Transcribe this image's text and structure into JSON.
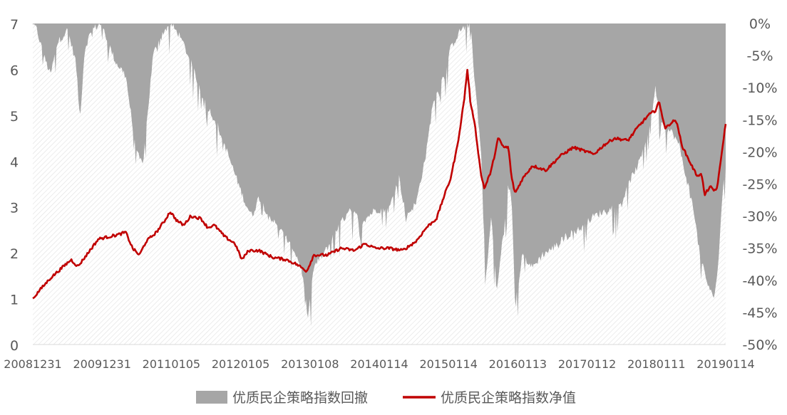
{
  "chart_data": {
    "type": "area+line",
    "title": "",
    "xlabel": "",
    "ylabel_left": "",
    "ylabel_right": "",
    "y_left_range": [
      0,
      7
    ],
    "y_right_range": [
      -0.5,
      0.0
    ],
    "grid": false,
    "legend_position": "bottom",
    "x_tick_labels": [
      "20081231",
      "20091231",
      "20110105",
      "20120105",
      "20130108",
      "20140114",
      "20150114",
      "20160113",
      "20170112",
      "20180111",
      "20190114"
    ],
    "y_left_ticks": [
      "0",
      "1",
      "2",
      "3",
      "4",
      "5",
      "6",
      "7"
    ],
    "y_right_ticks": [
      "0%",
      "-5%",
      "-10%",
      "-15%",
      "-20%",
      "-25%",
      "-30%",
      "-35%",
      "-40%",
      "-45%",
      "-50%"
    ],
    "series": [
      {
        "name": "优质民企策略指数回撤",
        "type": "area",
        "axis": "right",
        "color": "#a6a6a6",
        "keypoints": [
          [
            2008.99,
            0
          ],
          [
            2009.05,
            -0.01
          ],
          [
            2009.15,
            -0.05
          ],
          [
            2009.25,
            -0.08
          ],
          [
            2009.35,
            -0.03
          ],
          [
            2009.5,
            -0.01
          ],
          [
            2009.62,
            -0.06
          ],
          [
            2009.68,
            -0.15
          ],
          [
            2009.75,
            -0.04
          ],
          [
            2009.85,
            -0.01
          ],
          [
            2009.99,
            0
          ],
          [
            2010.2,
            -0.06
          ],
          [
            2010.35,
            -0.08
          ],
          [
            2010.5,
            -0.2
          ],
          [
            2010.6,
            -0.22
          ],
          [
            2010.75,
            -0.05
          ],
          [
            2010.85,
            -0.02
          ],
          [
            2011.0,
            0
          ],
          [
            2011.15,
            -0.02
          ],
          [
            2011.3,
            -0.06
          ],
          [
            2011.5,
            -0.12
          ],
          [
            2011.7,
            -0.16
          ],
          [
            2011.9,
            -0.22
          ],
          [
            2012.0,
            -0.25
          ],
          [
            2012.1,
            -0.28
          ],
          [
            2012.2,
            -0.3
          ],
          [
            2012.3,
            -0.27
          ],
          [
            2012.45,
            -0.3
          ],
          [
            2012.6,
            -0.32
          ],
          [
            2012.8,
            -0.35
          ],
          [
            2012.92,
            -0.38
          ],
          [
            2013.02,
            -0.46
          ],
          [
            2013.1,
            -0.38
          ],
          [
            2013.3,
            -0.35
          ],
          [
            2013.5,
            -0.31
          ],
          [
            2013.65,
            -0.29
          ],
          [
            2013.8,
            -0.31
          ],
          [
            2014.0,
            -0.29
          ],
          [
            2014.2,
            -0.29
          ],
          [
            2014.35,
            -0.24
          ],
          [
            2014.45,
            -0.3
          ],
          [
            2014.6,
            -0.28
          ],
          [
            2014.75,
            -0.2
          ],
          [
            2014.85,
            -0.12
          ],
          [
            2014.95,
            -0.1
          ],
          [
            2015.1,
            -0.04
          ],
          [
            2015.25,
            -0.01
          ],
          [
            2015.4,
            0
          ],
          [
            2015.45,
            -0.08
          ],
          [
            2015.55,
            -0.2
          ],
          [
            2015.62,
            -0.4
          ],
          [
            2015.7,
            -0.3
          ],
          [
            2015.78,
            -0.42
          ],
          [
            2015.88,
            -0.32
          ],
          [
            2015.95,
            -0.25
          ],
          [
            2016.0,
            -0.28
          ],
          [
            2016.05,
            -0.44
          ],
          [
            2016.15,
            -0.36
          ],
          [
            2016.3,
            -0.38
          ],
          [
            2016.45,
            -0.36
          ],
          [
            2016.6,
            -0.35
          ],
          [
            2016.8,
            -0.33
          ],
          [
            2017.0,
            -0.32
          ],
          [
            2017.2,
            -0.3
          ],
          [
            2017.4,
            -0.29
          ],
          [
            2017.6,
            -0.28
          ],
          [
            2017.75,
            -0.24
          ],
          [
            2017.85,
            -0.22
          ],
          [
            2017.95,
            -0.19
          ],
          [
            2018.05,
            -0.14
          ],
          [
            2018.1,
            -0.1
          ],
          [
            2018.2,
            -0.16
          ],
          [
            2018.35,
            -0.17
          ],
          [
            2018.45,
            -0.19
          ],
          [
            2018.55,
            -0.24
          ],
          [
            2018.65,
            -0.28
          ],
          [
            2018.75,
            -0.36
          ],
          [
            2018.85,
            -0.4
          ],
          [
            2018.95,
            -0.43
          ],
          [
            2019.02,
            -0.38
          ],
          [
            2019.06,
            -0.3
          ],
          [
            2019.1,
            -0.25
          ],
          [
            2019.13,
            -0.22
          ]
        ]
      },
      {
        "name": "优质民企策略指数净值",
        "type": "line",
        "axis": "left",
        "color": "#c00000",
        "keypoints": [
          [
            2008.99,
            1.0
          ],
          [
            2009.1,
            1.2
          ],
          [
            2009.25,
            1.45
          ],
          [
            2009.4,
            1.65
          ],
          [
            2009.55,
            1.85
          ],
          [
            2009.65,
            1.7
          ],
          [
            2009.8,
            2.0
          ],
          [
            2009.95,
            2.3
          ],
          [
            2010.1,
            2.35
          ],
          [
            2010.25,
            2.4
          ],
          [
            2010.35,
            2.45
          ],
          [
            2010.45,
            2.1
          ],
          [
            2010.55,
            1.95
          ],
          [
            2010.65,
            2.25
          ],
          [
            2010.8,
            2.45
          ],
          [
            2010.92,
            2.7
          ],
          [
            2011.0,
            2.9
          ],
          [
            2011.1,
            2.7
          ],
          [
            2011.2,
            2.6
          ],
          [
            2011.3,
            2.8
          ],
          [
            2011.45,
            2.75
          ],
          [
            2011.55,
            2.55
          ],
          [
            2011.65,
            2.6
          ],
          [
            2011.8,
            2.35
          ],
          [
            2011.95,
            2.2
          ],
          [
            2012.05,
            1.85
          ],
          [
            2012.15,
            2.05
          ],
          [
            2012.3,
            2.05
          ],
          [
            2012.5,
            1.9
          ],
          [
            2012.7,
            1.85
          ],
          [
            2012.85,
            1.75
          ],
          [
            2013.0,
            1.6
          ],
          [
            2013.1,
            1.95
          ],
          [
            2013.3,
            1.95
          ],
          [
            2013.5,
            2.1
          ],
          [
            2013.7,
            2.05
          ],
          [
            2013.85,
            2.2
          ],
          [
            2014.0,
            2.1
          ],
          [
            2014.2,
            2.1
          ],
          [
            2014.4,
            2.05
          ],
          [
            2014.6,
            2.25
          ],
          [
            2014.75,
            2.55
          ],
          [
            2014.9,
            2.75
          ],
          [
            2015.0,
            3.2
          ],
          [
            2015.1,
            3.6
          ],
          [
            2015.2,
            4.3
          ],
          [
            2015.3,
            5.3
          ],
          [
            2015.35,
            6.0
          ],
          [
            2015.4,
            5.2
          ],
          [
            2015.45,
            4.9
          ],
          [
            2015.5,
            4.3
          ],
          [
            2015.55,
            3.7
          ],
          [
            2015.6,
            3.4
          ],
          [
            2015.7,
            3.8
          ],
          [
            2015.8,
            4.5
          ],
          [
            2015.88,
            4.3
          ],
          [
            2015.95,
            4.3
          ],
          [
            2016.0,
            3.6
          ],
          [
            2016.05,
            3.3
          ],
          [
            2016.15,
            3.6
          ],
          [
            2016.3,
            3.9
          ],
          [
            2016.5,
            3.8
          ],
          [
            2016.7,
            4.1
          ],
          [
            2016.9,
            4.3
          ],
          [
            2017.0,
            4.25
          ],
          [
            2017.2,
            4.15
          ],
          [
            2017.35,
            4.35
          ],
          [
            2017.5,
            4.5
          ],
          [
            2017.7,
            4.45
          ],
          [
            2017.85,
            4.75
          ],
          [
            2018.0,
            5.0
          ],
          [
            2018.1,
            5.1
          ],
          [
            2018.15,
            5.3
          ],
          [
            2018.25,
            4.7
          ],
          [
            2018.3,
            4.8
          ],
          [
            2018.4,
            4.9
          ],
          [
            2018.5,
            4.3
          ],
          [
            2018.6,
            4.0
          ],
          [
            2018.7,
            3.7
          ],
          [
            2018.78,
            3.7
          ],
          [
            2018.82,
            3.25
          ],
          [
            2018.9,
            3.45
          ],
          [
            2018.95,
            3.35
          ],
          [
            2019.0,
            3.4
          ],
          [
            2019.05,
            3.9
          ],
          [
            2019.1,
            4.5
          ],
          [
            2019.13,
            4.8
          ]
        ]
      }
    ],
    "legend": [
      "优质民企策略指数回撤",
      "优质民企策略指数净值"
    ]
  }
}
